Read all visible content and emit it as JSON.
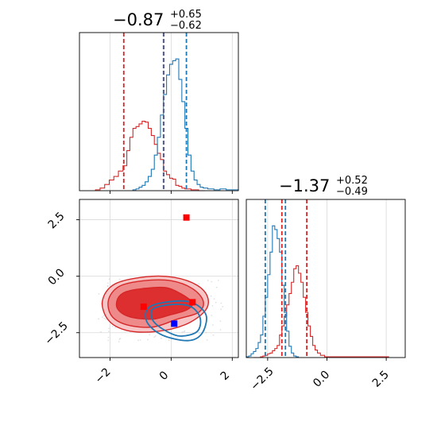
{
  "chart_data": [
    {
      "type": "histogram",
      "panel": "top-left",
      "parameter_index": 0,
      "title": {
        "main": "−0.87",
        "upper": "+0.65",
        "lower": "−0.62"
      },
      "xlim": [
        -3.0,
        2.2
      ],
      "xticks": [
        -2,
        0,
        2
      ],
      "xtick_labels_shown": false,
      "series": [
        {
          "color": "#d62728",
          "x": [
            -2.4,
            -2.25,
            -2.1,
            -1.95,
            -1.8,
            -1.65,
            -1.5,
            -1.4,
            -1.3,
            -1.2,
            -1.1,
            -1.0,
            -0.9,
            -0.8,
            -0.7,
            -0.6,
            -0.5,
            -0.4,
            -0.3,
            -0.2,
            -0.1,
            0.0,
            0.1,
            0.2,
            0.3,
            0.4,
            0.5,
            0.6,
            0.7,
            0.8,
            1.0
          ],
          "values": [
            1,
            3,
            7,
            12,
            16,
            22,
            28,
            45,
            60,
            70,
            72,
            75,
            78,
            77,
            70,
            62,
            52,
            42,
            35,
            22,
            18,
            14,
            13,
            6,
            5,
            3,
            2,
            2,
            1,
            1,
            0
          ]
        },
        {
          "color": "#1f77b4",
          "x": [
            -1.2,
            -1.1,
            -1.0,
            -0.9,
            -0.8,
            -0.7,
            -0.6,
            -0.5,
            -0.4,
            -0.3,
            -0.2,
            -0.1,
            0.0,
            0.1,
            0.2,
            0.3,
            0.4,
            0.5,
            0.6,
            0.7,
            0.8,
            0.9,
            1.0,
            1.1,
            1.3,
            1.5,
            1.7,
            1.9,
            2.1
          ],
          "values": [
            1,
            2,
            4,
            6,
            10,
            16,
            24,
            40,
            60,
            85,
            108,
            130,
            142,
            146,
            148,
            125,
            100,
            70,
            40,
            22,
            12,
            7,
            4,
            3,
            2,
            1,
            2,
            1,
            1
          ]
        }
      ],
      "quantile_lines": [
        {
          "color": "#d62728",
          "x": [
            -1.55,
            -0.24
          ]
        },
        {
          "color": "#1f77b4",
          "x": [
            -0.25,
            0.5
          ]
        }
      ]
    },
    {
      "type": "histogram",
      "panel": "bottom-right",
      "parameter_index": 1,
      "title": {
        "main": "−1.37",
        "upper": "+0.52",
        "lower": "−0.49"
      },
      "xlim": [
        -3.4,
        3.3
      ],
      "xticks": [
        -2.5,
        0.0,
        2.5
      ],
      "xtick_labels": [
        "−2.5",
        "0.0",
        "2.5"
      ],
      "series": [
        {
          "color": "#d62728",
          "x": [
            -3.05,
            -2.95,
            -2.85,
            -2.75,
            -2.65,
            -2.55,
            -2.45,
            -2.35,
            -2.25,
            -2.15,
            -2.05,
            -1.95,
            -1.85,
            -1.75,
            -1.65,
            -1.55,
            -1.45,
            -1.35,
            -1.25,
            -1.15,
            -1.05,
            -0.95,
            -0.85,
            -0.75,
            -0.65,
            -0.55,
            -0.45,
            -0.35,
            -0.2,
            0.0,
            0.2,
            2.3,
            2.5
          ],
          "values": [
            0,
            0,
            0,
            1,
            2,
            3,
            5,
            6,
            9,
            12,
            16,
            30,
            42,
            55,
            70,
            85,
            100,
            118,
            122,
            112,
            100,
            80,
            60,
            42,
            28,
            16,
            10,
            6,
            3,
            1,
            1,
            1,
            1
          ]
        },
        {
          "color": "#1f77b4",
          "x": [
            -3.35,
            -3.25,
            -3.15,
            -3.05,
            -2.95,
            -2.85,
            -2.75,
            -2.65,
            -2.55,
            -2.45,
            -2.35,
            -2.25,
            -2.15,
            -2.05,
            -1.95,
            -1.85,
            -1.75,
            -1.65,
            -1.55,
            -1.45,
            -1.35,
            -1.25
          ],
          "values": [
            1,
            2,
            5,
            8,
            12,
            20,
            30,
            55,
            80,
            110,
            140,
            175,
            170,
            158,
            140,
            96,
            60,
            35,
            15,
            6,
            2,
            1
          ]
        }
      ],
      "quantile_lines": [
        {
          "color": "#d62728",
          "x": [
            -1.9,
            -0.85
          ]
        },
        {
          "color": "#1f77b4",
          "x": [
            -2.6,
            -1.75
          ]
        }
      ]
    },
    {
      "type": "contour",
      "panel": "bottom-left",
      "xlim": [
        -3.0,
        2.2
      ],
      "ylim": [
        -3.6,
        3.4
      ],
      "xticks": [
        -2,
        0,
        2
      ],
      "xtick_labels": [
        "−2",
        "0",
        "2"
      ],
      "yticks": [
        -2.5,
        0.0,
        2.5
      ],
      "ytick_labels": [
        "−2.5",
        "0.0",
        "2.5"
      ],
      "grid": true,
      "red_contours": [
        [
          [
            -0.95,
            -0.55
          ],
          [
            -0.2,
            -0.5
          ],
          [
            0.35,
            -0.8
          ],
          [
            0.7,
            -1.2
          ],
          [
            0.5,
            -1.5
          ],
          [
            0.0,
            -1.7
          ],
          [
            -0.6,
            -1.9
          ],
          [
            -1.35,
            -1.8
          ],
          [
            -1.75,
            -1.45
          ],
          [
            -1.75,
            -1.0
          ],
          [
            -1.5,
            -0.7
          ]
        ],
        [
          [
            -0.9,
            -0.2
          ],
          [
            0.0,
            -0.2
          ],
          [
            0.7,
            -0.55
          ],
          [
            1.05,
            -1.1
          ],
          [
            0.9,
            -1.6
          ],
          [
            0.2,
            -1.9
          ],
          [
            -0.6,
            -2.25
          ],
          [
            -1.45,
            -2.15
          ],
          [
            -1.95,
            -1.75
          ],
          [
            -2.05,
            -1.05
          ],
          [
            -1.7,
            -0.45
          ]
        ],
        [
          [
            -0.8,
            -0.02
          ],
          [
            0.1,
            -0.05
          ],
          [
            0.85,
            -0.4
          ],
          [
            1.2,
            -0.95
          ],
          [
            1.1,
            -1.55
          ],
          [
            0.45,
            -2.15
          ],
          [
            -0.5,
            -2.45
          ],
          [
            -1.45,
            -2.4
          ],
          [
            -2.05,
            -1.95
          ],
          [
            -2.25,
            -1.1
          ],
          [
            -1.85,
            -0.35
          ]
        ]
      ],
      "blue_contours": [
        [
          [
            -0.6,
            -1.45
          ],
          [
            0.05,
            -1.25
          ],
          [
            0.65,
            -1.35
          ],
          [
            0.95,
            -1.85
          ],
          [
            0.85,
            -2.45
          ],
          [
            0.3,
            -2.65
          ],
          [
            -0.2,
            -2.4
          ],
          [
            -0.6,
            -1.95
          ]
        ],
        [
          [
            -0.7,
            -1.35
          ],
          [
            0.15,
            -1.1
          ],
          [
            0.75,
            -1.2
          ],
          [
            1.15,
            -1.75
          ],
          [
            1.0,
            -2.55
          ],
          [
            0.55,
            -2.85
          ],
          [
            -0.3,
            -2.6
          ],
          [
            -0.8,
            -2.0
          ]
        ]
      ],
      "markers": [
        {
          "color": "#ff0000",
          "x": -0.9,
          "y": -1.35
        },
        {
          "color": "#ff0000",
          "x": 0.7,
          "y": -1.15
        },
        {
          "color": "#ff0000",
          "x": 0.5,
          "y": 2.6
        },
        {
          "color": "#0000ff",
          "x": 0.1,
          "y": -2.1
        }
      ]
    }
  ]
}
